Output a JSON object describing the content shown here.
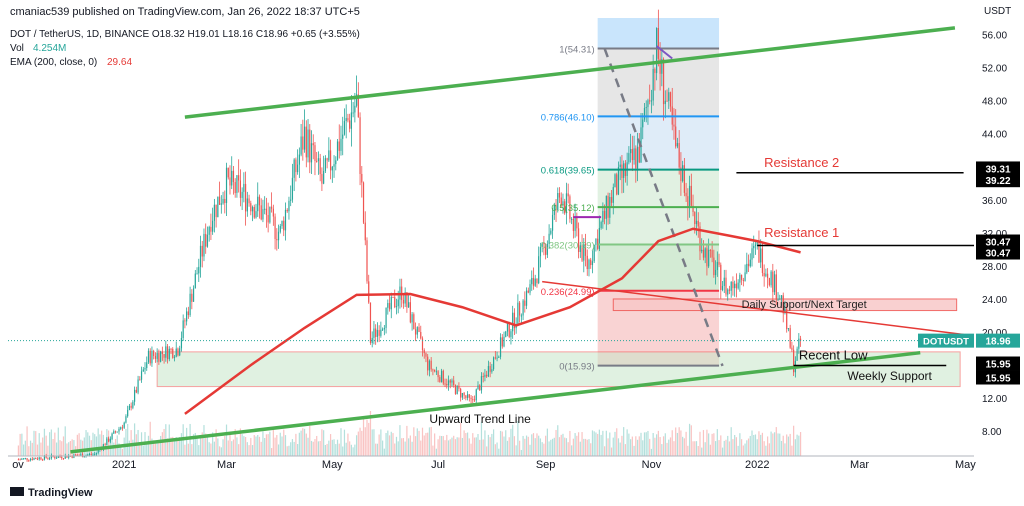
{
  "header": {
    "published": "cmaniac539 published on TradingView.com, Jan 26, 2022 18:37 UTC+5",
    "symbol_line": "DOT / TetherUS, 1D, BINANCE  O18.32  H19.01  L18.16  C18.96  +0.65 (+3.55%)",
    "vol_label": "Vol",
    "vol_value": "4.254M",
    "ema_label": "EMA (200, close, 0)",
    "ema_value": "29.64",
    "currency": "USDT"
  },
  "footer": {
    "brand": "TradingView"
  },
  "colors": {
    "up": "#26a69a",
    "down": "#ef5350",
    "trend": "#4caf50",
    "ema": "#e53935",
    "fib_blue_zone": "#bbdefb",
    "fib_grey_zone": "#e0e0e0",
    "green_zone": "#c8e6c9",
    "red_zone": "#f8c8c8"
  },
  "chart_data": {
    "type": "candlestick",
    "symbol": "DOTUSDT",
    "last_price": 18.96,
    "last_price_label": "18.96",
    "x_ticks": [
      "ov",
      "2021",
      "Mar",
      "May",
      "Jul",
      "Sep",
      "Nov",
      "2022",
      "Mar",
      "May"
    ],
    "y_ticks": [
      "56.00",
      "52.00",
      "48.00",
      "44.00",
      "40.00",
      "36.00",
      "32.00",
      "28.00",
      "24.00",
      "20.00",
      "16.00",
      "12.00",
      "8.00"
    ],
    "y_ticks_values": [
      56,
      52,
      48,
      44,
      40,
      36,
      32,
      28,
      24,
      20,
      16,
      12,
      8
    ],
    "ylim": [
      5,
      58
    ],
    "price_labels": [
      {
        "text": "39.31",
        "value": 39.31
      },
      {
        "text": "39.22",
        "value": 39.22
      },
      {
        "text": "30.47",
        "value": 30.47
      },
      {
        "text": "30.47",
        "value": 30.47
      },
      {
        "text": "15.95",
        "value": 15.95
      },
      {
        "text": "15.95",
        "value": 15.95
      }
    ],
    "fib_levels": [
      {
        "label": "1(54.31)",
        "value": 54.31
      },
      {
        "label": "0.786(46.10)",
        "value": 46.1
      },
      {
        "label": "0.618(39.65)",
        "value": 39.65
      },
      {
        "label": "0.5(35.12)",
        "value": 35.12
      },
      {
        "label": "0.382(30.59)",
        "value": 30.59
      },
      {
        "label": "0.236(24.99)",
        "value": 24.99
      },
      {
        "label": "0(15.93)",
        "value": 15.93
      }
    ],
    "annotations": {
      "resistance_2": "Resistance 2",
      "resistance_1": "Resistance 1",
      "daily_support": "Daily Support/Next Target",
      "recent_low": "Recent Low",
      "weekly_support": "Weekly Support",
      "upward_trend": "Upward Trend Line"
    },
    "price_path": [
      {
        "date": "2020-11-01",
        "close": 4.6
      },
      {
        "date": "2020-12-15",
        "close": 5.2
      },
      {
        "date": "2021-01-01",
        "close": 9.0
      },
      {
        "date": "2021-01-15",
        "close": 17.0
      },
      {
        "date": "2021-02-01",
        "close": 18.0
      },
      {
        "date": "2021-02-20",
        "close": 34.0
      },
      {
        "date": "2021-03-01",
        "close": 38.0
      },
      {
        "date": "2021-03-15",
        "close": 36.0
      },
      {
        "date": "2021-04-01",
        "close": 32.0
      },
      {
        "date": "2021-04-15",
        "close": 44.0
      },
      {
        "date": "2021-04-25",
        "close": 38.0
      },
      {
        "date": "2021-05-15",
        "close": 48.0
      },
      {
        "date": "2021-05-23",
        "close": 19.0
      },
      {
        "date": "2021-06-10",
        "close": 25.0
      },
      {
        "date": "2021-06-25",
        "close": 16.0
      },
      {
        "date": "2021-07-20",
        "close": 11.5
      },
      {
        "date": "2021-08-10",
        "close": 20.0
      },
      {
        "date": "2021-08-25",
        "close": 26.0
      },
      {
        "date": "2021-09-10",
        "close": 37.0
      },
      {
        "date": "2021-09-25",
        "close": 28.0
      },
      {
        "date": "2021-10-10",
        "close": 37.0
      },
      {
        "date": "2021-10-25",
        "close": 42.0
      },
      {
        "date": "2021-11-04",
        "close": 54.3
      },
      {
        "date": "2021-11-15",
        "close": 42.0
      },
      {
        "date": "2021-12-01",
        "close": 30.0
      },
      {
        "date": "2021-12-15",
        "close": 25.0
      },
      {
        "date": "2022-01-01",
        "close": 30.0
      },
      {
        "date": "2022-01-15",
        "close": 24.0
      },
      {
        "date": "2022-01-22",
        "close": 16.0
      },
      {
        "date": "2022-01-26",
        "close": 18.96
      }
    ]
  }
}
